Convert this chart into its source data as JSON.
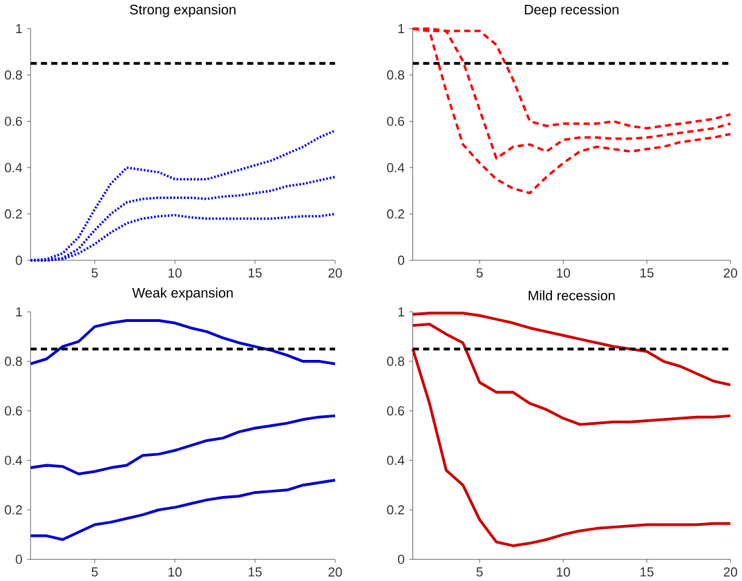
{
  "chart_data": [
    {
      "type": "line",
      "title": "Strong expansion",
      "x": [
        1,
        2,
        3,
        4,
        5,
        6,
        7,
        8,
        9,
        10,
        11,
        12,
        13,
        14,
        15,
        16,
        17,
        18,
        19,
        20
      ],
      "line_style": "dotted",
      "xlim": [
        1,
        20
      ],
      "ylim": [
        0,
        1
      ],
      "xticks": [
        5,
        10,
        15,
        20
      ],
      "yticks": [
        0,
        0.2,
        0.4,
        0.6,
        0.8,
        1
      ],
      "ref_lines": [
        {
          "axis": "y",
          "value": 0.85,
          "color": "#000000",
          "line_style": "dashed"
        }
      ],
      "series": [
        {
          "color": "#0000ff",
          "values": [
            0,
            0.005,
            0.03,
            0.1,
            0.22,
            0.33,
            0.4,
            0.39,
            0.38,
            0.35,
            0.35,
            0.35,
            0.37,
            0.39,
            0.41,
            0.43,
            0.46,
            0.49,
            0.53,
            0.56
          ]
        },
        {
          "color": "#0000ff",
          "values": [
            0,
            0,
            0.01,
            0.05,
            0.13,
            0.2,
            0.25,
            0.265,
            0.27,
            0.27,
            0.27,
            0.265,
            0.275,
            0.28,
            0.29,
            0.3,
            0.32,
            0.33,
            0.345,
            0.36
          ]
        },
        {
          "color": "#0000ff",
          "values": [
            0,
            0,
            0.005,
            0.03,
            0.07,
            0.12,
            0.16,
            0.18,
            0.19,
            0.195,
            0.185,
            0.18,
            0.18,
            0.18,
            0.18,
            0.18,
            0.185,
            0.19,
            0.19,
            0.2
          ]
        }
      ]
    },
    {
      "type": "line",
      "title": "Deep recession",
      "x": [
        1,
        2,
        3,
        4,
        5,
        6,
        7,
        8,
        9,
        10,
        11,
        12,
        13,
        14,
        15,
        16,
        17,
        18,
        19,
        20
      ],
      "line_style": "dashed",
      "xlim": [
        1,
        20
      ],
      "ylim": [
        0,
        1
      ],
      "xticks": [
        5,
        10,
        15,
        20
      ],
      "yticks": [
        0,
        0.2,
        0.4,
        0.6,
        0.8,
        1
      ],
      "ref_lines": [
        {
          "axis": "y",
          "value": 0.85,
          "color": "#000000",
          "line_style": "dashed"
        }
      ],
      "series": [
        {
          "color": "#ff0000",
          "values": [
            1,
            0.99,
            0.99,
            0.99,
            0.99,
            0.93,
            0.78,
            0.6,
            0.58,
            0.59,
            0.59,
            0.59,
            0.6,
            0.58,
            0.57,
            0.58,
            0.59,
            0.6,
            0.61,
            0.63
          ]
        },
        {
          "color": "#ff0000",
          "values": [
            1,
            1,
            0.99,
            0.86,
            0.65,
            0.44,
            0.49,
            0.5,
            0.47,
            0.52,
            0.53,
            0.53,
            0.525,
            0.525,
            0.53,
            0.54,
            0.55,
            0.56,
            0.57,
            0.59
          ]
        },
        {
          "color": "#ff0000",
          "values": [
            1,
            0.99,
            0.73,
            0.5,
            0.42,
            0.35,
            0.31,
            0.29,
            0.36,
            0.42,
            0.47,
            0.49,
            0.48,
            0.47,
            0.48,
            0.49,
            0.51,
            0.52,
            0.53,
            0.545
          ]
        }
      ]
    },
    {
      "type": "line",
      "title": "Weak expansion",
      "x": [
        1,
        2,
        3,
        4,
        5,
        6,
        7,
        8,
        9,
        10,
        11,
        12,
        13,
        14,
        15,
        16,
        17,
        18,
        19,
        20
      ],
      "line_style": "solid",
      "xlim": [
        1,
        20
      ],
      "ylim": [
        0,
        1
      ],
      "xticks": [
        5,
        10,
        15,
        20
      ],
      "yticks": [
        0,
        0.2,
        0.4,
        0.6,
        0.8,
        1
      ],
      "ref_lines": [
        {
          "axis": "y",
          "value": 0.85,
          "color": "#000000",
          "line_style": "dashed"
        }
      ],
      "series": [
        {
          "color": "#0000cc",
          "values": [
            0.79,
            0.81,
            0.86,
            0.88,
            0.94,
            0.955,
            0.965,
            0.965,
            0.965,
            0.955,
            0.935,
            0.92,
            0.895,
            0.875,
            0.86,
            0.845,
            0.825,
            0.8,
            0.8,
            0.79
          ]
        },
        {
          "color": "#0000cc",
          "values": [
            0.37,
            0.38,
            0.375,
            0.345,
            0.355,
            0.37,
            0.38,
            0.42,
            0.425,
            0.44,
            0.46,
            0.48,
            0.49,
            0.515,
            0.53,
            0.54,
            0.55,
            0.565,
            0.575,
            0.58
          ]
        },
        {
          "color": "#0000cc",
          "values": [
            0.095,
            0.095,
            0.08,
            0.11,
            0.14,
            0.15,
            0.165,
            0.18,
            0.2,
            0.21,
            0.225,
            0.24,
            0.25,
            0.255,
            0.27,
            0.275,
            0.28,
            0.3,
            0.31,
            0.32
          ]
        }
      ]
    },
    {
      "type": "line",
      "title": "Mild recession",
      "x": [
        1,
        2,
        3,
        4,
        5,
        6,
        7,
        8,
        9,
        10,
        11,
        12,
        13,
        14,
        15,
        16,
        17,
        18,
        19,
        20
      ],
      "line_style": "solid",
      "xlim": [
        1,
        20
      ],
      "ylim": [
        0,
        1
      ],
      "xticks": [
        5,
        10,
        15,
        20
      ],
      "yticks": [
        0,
        0.2,
        0.4,
        0.6,
        0.8,
        1
      ],
      "ref_lines": [
        {
          "axis": "y",
          "value": 0.85,
          "color": "#000000",
          "line_style": "dashed"
        }
      ],
      "series": [
        {
          "color": "#cc0000",
          "values": [
            0.99,
            0.995,
            0.995,
            0.995,
            0.985,
            0.97,
            0.955,
            0.935,
            0.92,
            0.905,
            0.89,
            0.875,
            0.86,
            0.85,
            0.84,
            0.8,
            0.78,
            0.75,
            0.72,
            0.705
          ]
        },
        {
          "color": "#cc0000",
          "values": [
            0.945,
            0.95,
            0.91,
            0.875,
            0.715,
            0.675,
            0.675,
            0.63,
            0.605,
            0.57,
            0.545,
            0.55,
            0.555,
            0.555,
            0.56,
            0.565,
            0.57,
            0.575,
            0.575,
            0.58
          ]
        },
        {
          "color": "#cc0000",
          "values": [
            0.85,
            0.63,
            0.36,
            0.3,
            0.16,
            0.07,
            0.055,
            0.065,
            0.08,
            0.1,
            0.115,
            0.125,
            0.13,
            0.135,
            0.14,
            0.14,
            0.14,
            0.14,
            0.145,
            0.145
          ]
        }
      ]
    }
  ]
}
